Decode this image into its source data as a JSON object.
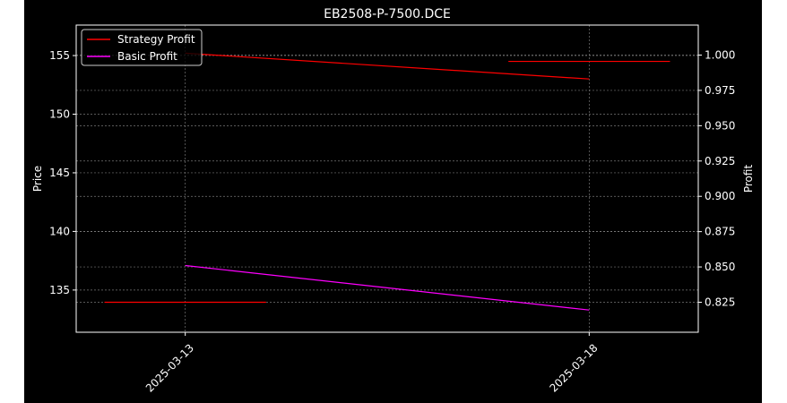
{
  "chart_data": {
    "type": "line",
    "title": "EB2508-P-7500.DCE",
    "xlabel": "",
    "ylabel_left": "Price",
    "ylabel_right": "Profit",
    "x_ticks": [
      "2025-03-13",
      "2025-03-18"
    ],
    "x_range": [
      "2025-03-11.65",
      "2025-03-19.35"
    ],
    "y_left": {
      "range": [
        131.4,
        157.6
      ],
      "ticks": [
        135,
        140,
        145,
        150,
        155
      ]
    },
    "y_right": {
      "range": [
        0.80375,
        1.02125
      ],
      "ticks": [
        0.825,
        0.85,
        0.875,
        0.9,
        0.925,
        0.95,
        0.975,
        1.0
      ]
    },
    "grid": true,
    "legend_position": "top-left",
    "series": [
      {
        "name": "Strategy Profit",
        "color": "#ff0000",
        "axis": "left",
        "points": [
          [
            "2025-03-13",
            155.2
          ],
          [
            "2025-03-18",
            153.0
          ]
        ]
      },
      {
        "name": "Basic Profit",
        "color": "#ff00ff",
        "axis": "right",
        "points": [
          [
            "2025-03-13",
            0.851
          ],
          [
            "2025-03-18",
            0.8195
          ]
        ]
      }
    ],
    "horizontal_segments": [
      {
        "color": "#ff0000",
        "axis": "right",
        "y": 0.825,
        "x_range": [
          "2025-03-12",
          "2025-03-14"
        ]
      },
      {
        "color": "#ff0000",
        "axis": "left",
        "y": 154.5,
        "x_range": [
          "2025-03-17",
          "2025-03-19"
        ]
      }
    ]
  }
}
